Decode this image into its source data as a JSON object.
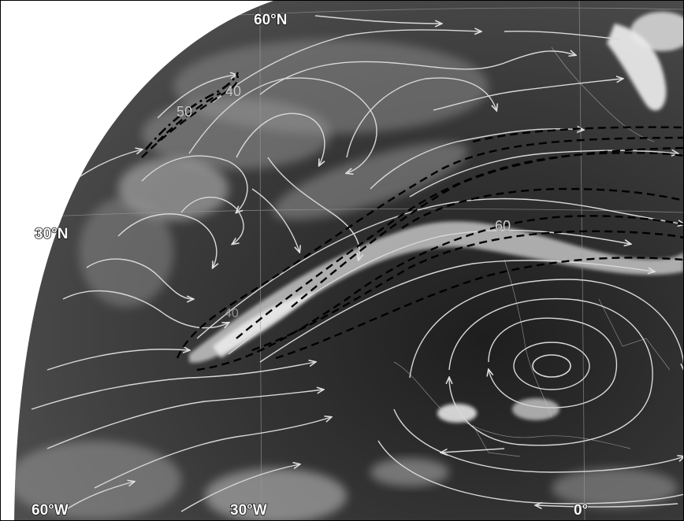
{
  "map": {
    "labels": {
      "lat_60n": "60°N",
      "lat_30n": "30°N",
      "lon_60w": "60°W",
      "lon_30w": "30°W",
      "lon_0": "0°"
    },
    "contour_labels": {
      "c1": "40",
      "c2": "50",
      "c3": "60",
      "c4": "40"
    },
    "colors": {
      "background": "#ffffff",
      "earth": "#3a3a3a",
      "streamlines": "#d8d8d8",
      "jet_contours": "#000000"
    }
  }
}
